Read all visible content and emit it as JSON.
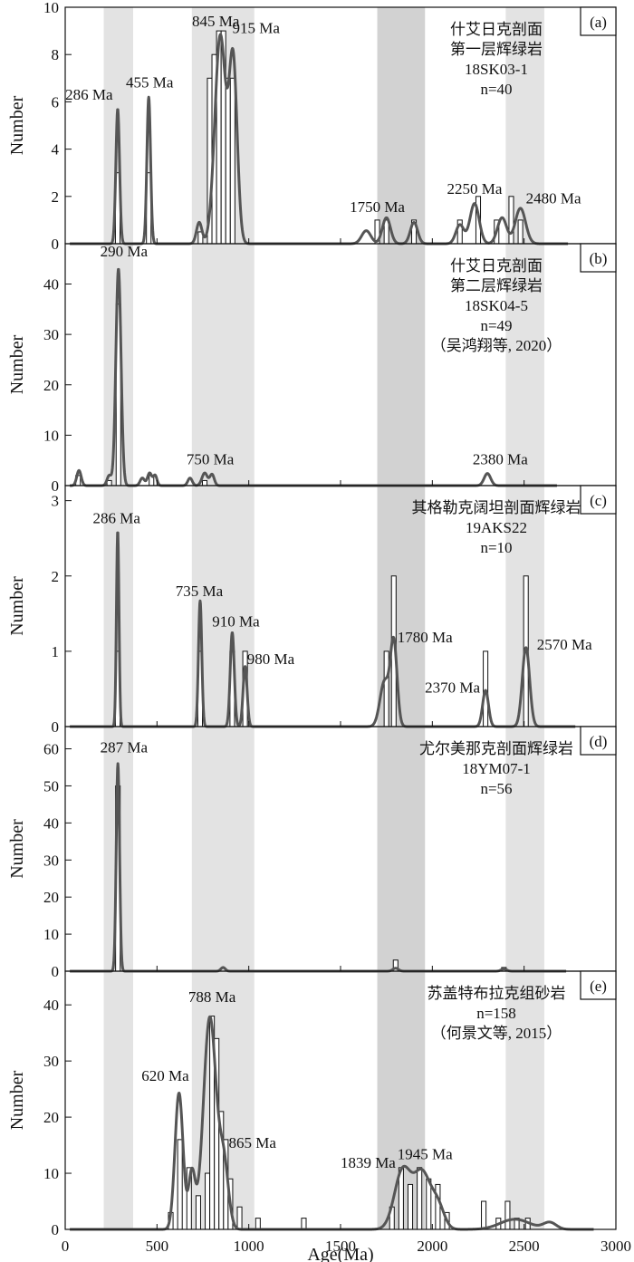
{
  "figure": {
    "xlabel": "Age(Ma)",
    "x_ticks": [
      0,
      500,
      1000,
      1500,
      2000,
      2500,
      3000
    ],
    "x_range": [
      0,
      3000
    ],
    "shaded_bands": [
      {
        "x0": 210,
        "x1": 370,
        "color": "#e3e3e3"
      },
      {
        "x0": 690,
        "x1": 1030,
        "color": "#e3e3e3"
      },
      {
        "x0": 1700,
        "x1": 1960,
        "color": "#d2d2d2"
      },
      {
        "x0": 2400,
        "x1": 2610,
        "color": "#e3e3e3"
      }
    ],
    "curve_color": "#555555",
    "bar_color": "#111111"
  },
  "chart_data": [
    {
      "type": "bar",
      "panel": "(a)",
      "ylabel": "Number",
      "ylim": [
        0,
        10
      ],
      "y_ticks": [
        0,
        2,
        4,
        6,
        8,
        10
      ],
      "info": [
        "什艾日克剖面",
        "第一层辉绿岩",
        "18SK03-1",
        "n=40"
      ],
      "bin_width": 25,
      "bars": [
        {
          "x": 286,
          "v": 3
        },
        {
          "x": 455,
          "v": 3
        },
        {
          "x": 737,
          "v": 0.5
        },
        {
          "x": 787,
          "v": 7
        },
        {
          "x": 812,
          "v": 8
        },
        {
          "x": 837,
          "v": 9
        },
        {
          "x": 862,
          "v": 9
        },
        {
          "x": 887,
          "v": 7
        },
        {
          "x": 912,
          "v": 7
        },
        {
          "x": 1700,
          "v": 1
        },
        {
          "x": 1750,
          "v": 1
        },
        {
          "x": 1900,
          "v": 1
        },
        {
          "x": 2150,
          "v": 1
        },
        {
          "x": 2250,
          "v": 2
        },
        {
          "x": 2350,
          "v": 1
        },
        {
          "x": 2430,
          "v": 2
        },
        {
          "x": 2480,
          "v": 1
        }
      ],
      "peaks": [
        {
          "x": 286,
          "h": 5.7,
          "s": 10
        },
        {
          "x": 455,
          "h": 6.2,
          "s": 10
        },
        {
          "x": 730,
          "h": 0.9,
          "s": 15
        },
        {
          "x": 845,
          "h": 8.8,
          "s": 30
        },
        {
          "x": 915,
          "h": 7.6,
          "s": 22
        },
        {
          "x": 1640,
          "h": 0.55,
          "s": 25
        },
        {
          "x": 1750,
          "h": 1.1,
          "s": 22
        },
        {
          "x": 1900,
          "h": 0.9,
          "s": 20
        },
        {
          "x": 2150,
          "h": 0.8,
          "s": 22
        },
        {
          "x": 2230,
          "h": 1.7,
          "s": 25
        },
        {
          "x": 2380,
          "h": 1.1,
          "s": 25
        },
        {
          "x": 2480,
          "h": 1.5,
          "s": 28
        }
      ],
      "curve_end": 2740,
      "labels": [
        {
          "text": "286 Ma",
          "x": 130,
          "y": 6.1
        },
        {
          "text": "455 Ma",
          "x": 460,
          "y": 6.6
        },
        {
          "text": "845 Ma",
          "x": 820,
          "y": 9.2
        },
        {
          "text": "915 Ma",
          "x": 1040,
          "y": 8.9
        },
        {
          "text": "1750 Ma",
          "x": 1700,
          "y": 1.35
        },
        {
          "text": "2250 Ma",
          "x": 2230,
          "y": 2.1
        },
        {
          "text": "2480 Ma",
          "x": 2660,
          "y": 1.7
        }
      ]
    },
    {
      "type": "bar",
      "panel": "(b)",
      "ylabel": "Number",
      "ylim": [
        0,
        48
      ],
      "y_ticks": [
        0,
        10,
        20,
        30,
        40
      ],
      "info": [
        "什艾日克剖面",
        "第二层辉绿岩",
        "18SK04-5",
        "n=49",
        "（吴鸿翔等, 2020）"
      ],
      "bin_width": 25,
      "bars": [
        {
          "x": 70,
          "v": 2
        },
        {
          "x": 240,
          "v": 1
        },
        {
          "x": 290,
          "v": 36
        },
        {
          "x": 470,
          "v": 2
        },
        {
          "x": 760,
          "v": 1
        },
        {
          "x": 2380,
          "v": 0
        }
      ],
      "peaks": [
        {
          "x": 75,
          "h": 3,
          "s": 12
        },
        {
          "x": 240,
          "h": 2,
          "s": 12
        },
        {
          "x": 290,
          "h": 43,
          "s": 14
        },
        {
          "x": 420,
          "h": 1.5,
          "s": 12
        },
        {
          "x": 460,
          "h": 2.5,
          "s": 12
        },
        {
          "x": 490,
          "h": 2,
          "s": 10
        },
        {
          "x": 680,
          "h": 1.5,
          "s": 12
        },
        {
          "x": 760,
          "h": 2.5,
          "s": 15
        },
        {
          "x": 800,
          "h": 2.2,
          "s": 12
        },
        {
          "x": 2300,
          "h": 2.4,
          "s": 18
        }
      ],
      "curve_end": 2680,
      "labels": [
        {
          "text": "290 Ma",
          "x": 320,
          "y": 45.5
        },
        {
          "text": "750 Ma",
          "x": 790,
          "y": 4.2
        },
        {
          "text": "2380 Ma",
          "x": 2370,
          "y": 4.2
        }
      ]
    },
    {
      "type": "bar",
      "panel": "(c)",
      "ylabel": "Number",
      "ylim": [
        0,
        3.2
      ],
      "y_ticks": [
        0,
        1,
        2,
        3
      ],
      "info": [
        "其格勒克阔坦剖面辉绿岩",
        "19AKS22",
        "n=10"
      ],
      "bin_width": 25,
      "bars": [
        {
          "x": 286,
          "v": 1
        },
        {
          "x": 735,
          "v": 1
        },
        {
          "x": 910,
          "v": 1
        },
        {
          "x": 980,
          "v": 1
        },
        {
          "x": 1750,
          "v": 1
        },
        {
          "x": 1790,
          "v": 2
        },
        {
          "x": 2290,
          "v": 1
        },
        {
          "x": 2510,
          "v": 2
        }
      ],
      "peaks": [
        {
          "x": 286,
          "h": 2.6,
          "s": 7
        },
        {
          "x": 735,
          "h": 1.67,
          "s": 9
        },
        {
          "x": 910,
          "h": 1.25,
          "s": 11
        },
        {
          "x": 980,
          "h": 0.8,
          "s": 11
        },
        {
          "x": 1740,
          "h": 0.6,
          "s": 25
        },
        {
          "x": 1790,
          "h": 1.1,
          "s": 18
        },
        {
          "x": 2290,
          "h": 0.48,
          "s": 16
        },
        {
          "x": 2510,
          "h": 1.05,
          "s": 20
        }
      ],
      "curve_end": 2780,
      "labels": [
        {
          "text": "286 Ma",
          "x": 280,
          "y": 2.7
        },
        {
          "text": "735 Ma",
          "x": 730,
          "y": 1.73
        },
        {
          "text": "910 Ma",
          "x": 930,
          "y": 1.33
        },
        {
          "text": "980 Ma",
          "x": 1120,
          "y": 0.83
        },
        {
          "text": "1780 Ma",
          "x": 1960,
          "y": 1.12
        },
        {
          "text": "2370 Ma",
          "x": 2110,
          "y": 0.45
        },
        {
          "text": "2570 Ma",
          "x": 2720,
          "y": 1.02
        }
      ]
    },
    {
      "type": "bar",
      "panel": "(d)",
      "ylabel": "Number",
      "ylim": [
        0,
        66
      ],
      "y_ticks": [
        0,
        10,
        20,
        30,
        40,
        50,
        60
      ],
      "info": [
        "尤尔美那克剖面辉绿岩",
        "18YM07-1",
        "n=56"
      ],
      "bin_width": 25,
      "bars": [
        {
          "x": 287,
          "v": 50
        },
        {
          "x": 1800,
          "v": 3
        },
        {
          "x": 2390,
          "v": 1
        }
      ],
      "peaks": [
        {
          "x": 287,
          "h": 56,
          "s": 9
        },
        {
          "x": 860,
          "h": 1,
          "s": 12
        },
        {
          "x": 1800,
          "h": 0.8,
          "s": 15
        },
        {
          "x": 2390,
          "h": 0.6,
          "s": 15
        }
      ],
      "curve_end": 2730,
      "labels": [
        {
          "text": "287 Ma",
          "x": 320,
          "y": 59
        }
      ]
    },
    {
      "type": "bar",
      "panel": "(e)",
      "ylabel": "Number",
      "ylim": [
        0,
        46
      ],
      "y_ticks": [
        0,
        10,
        20,
        30,
        40
      ],
      "info": [
        "苏盖特布拉克组砂岩",
        "n=158",
        "（何景文等, 2015）"
      ],
      "bin_width": 25,
      "bars": [
        {
          "x": 575,
          "v": 3
        },
        {
          "x": 625,
          "v": 16
        },
        {
          "x": 675,
          "v": 11
        },
        {
          "x": 725,
          "v": 6
        },
        {
          "x": 775,
          "v": 10
        },
        {
          "x": 800,
          "v": 38
        },
        {
          "x": 825,
          "v": 34
        },
        {
          "x": 850,
          "v": 21
        },
        {
          "x": 875,
          "v": 16
        },
        {
          "x": 900,
          "v": 9
        },
        {
          "x": 950,
          "v": 4
        },
        {
          "x": 1050,
          "v": 2
        },
        {
          "x": 1300,
          "v": 2
        },
        {
          "x": 1780,
          "v": 4
        },
        {
          "x": 1830,
          "v": 11
        },
        {
          "x": 1880,
          "v": 8
        },
        {
          "x": 1930,
          "v": 11
        },
        {
          "x": 1980,
          "v": 9
        },
        {
          "x": 2030,
          "v": 8
        },
        {
          "x": 2080,
          "v": 3
        },
        {
          "x": 2280,
          "v": 5
        },
        {
          "x": 2360,
          "v": 2
        },
        {
          "x": 2410,
          "v": 5
        },
        {
          "x": 2460,
          "v": 2
        },
        {
          "x": 2520,
          "v": 2
        }
      ],
      "peaks": [
        {
          "x": 620,
          "h": 24.3,
          "s": 22
        },
        {
          "x": 690,
          "h": 10,
          "s": 18
        },
        {
          "x": 788,
          "h": 37.8,
          "s": 35
        },
        {
          "x": 865,
          "h": 11,
          "s": 25
        },
        {
          "x": 1839,
          "h": 10.5,
          "s": 45
        },
        {
          "x": 1945,
          "h": 9.8,
          "s": 45
        },
        {
          "x": 2030,
          "h": 4,
          "s": 35
        },
        {
          "x": 2450,
          "h": 1.8,
          "s": 80
        },
        {
          "x": 2640,
          "h": 1.2,
          "s": 35
        }
      ],
      "curve_end": 2880,
      "labels": [
        {
          "text": "620 Ma",
          "x": 545,
          "y": 26.5
        },
        {
          "text": "788 Ma",
          "x": 800,
          "y": 40.5
        },
        {
          "text": "865 Ma",
          "x": 1020,
          "y": 14.5
        },
        {
          "text": "1839 Ma",
          "x": 1650,
          "y": 11
        },
        {
          "text": "1945 Ma",
          "x": 1960,
          "y": 12.5
        }
      ]
    }
  ]
}
